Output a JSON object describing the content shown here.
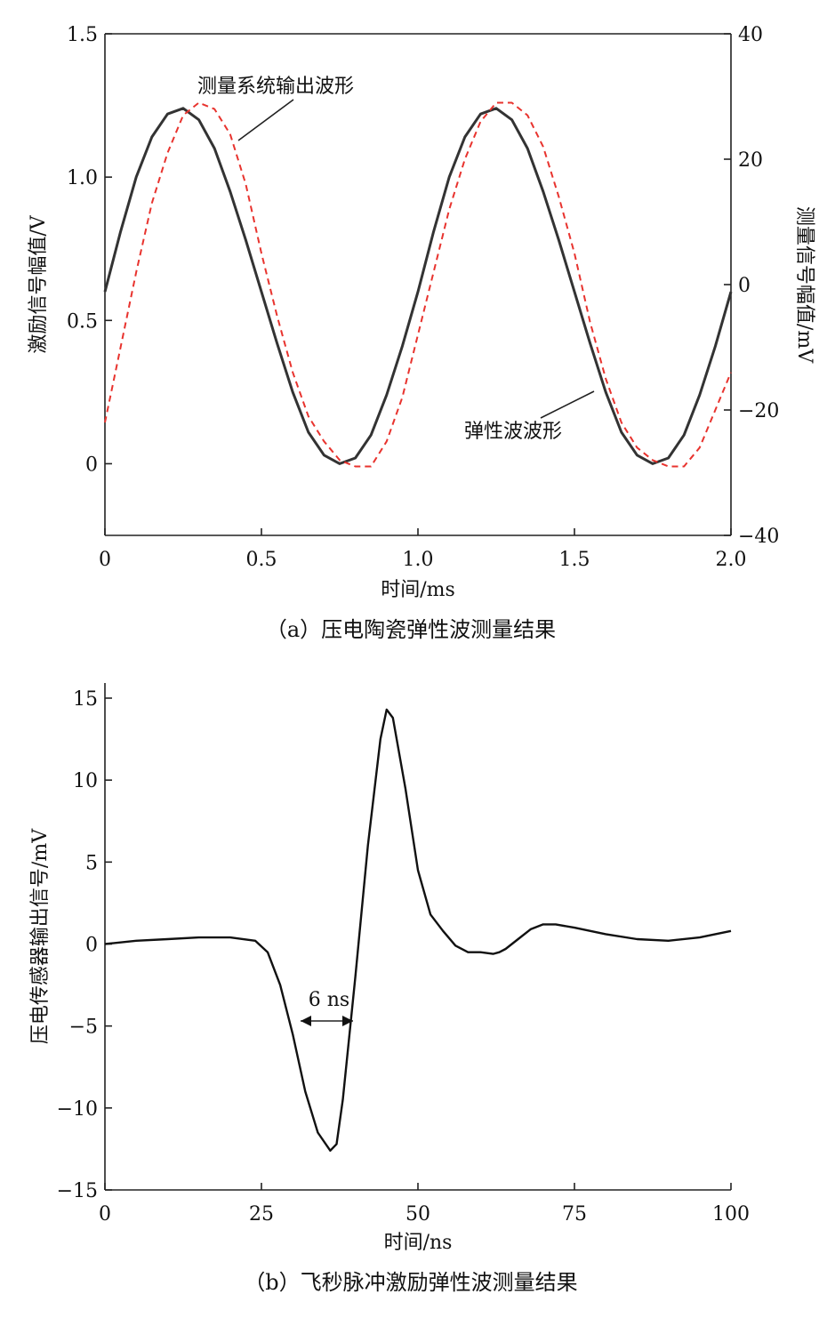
{
  "chart_data": [
    {
      "type": "line",
      "caption": "（a）压电陶瓷弹性波测量结果",
      "xlabel": "时间/ms",
      "ylabel_left": "激励信号幅值/V",
      "ylabel_right": "测量信号幅值/mV",
      "xlim": [
        0,
        2.0
      ],
      "ylim_left": [
        -0.25,
        1.5
      ],
      "ylim_right": [
        -40,
        40
      ],
      "xticks": [
        "0",
        "0.5",
        "1.0",
        "1.5",
        "2.0"
      ],
      "yticks_left": [
        "0",
        "0.5",
        "1.0",
        "1.5"
      ],
      "yticks_right": [
        "−40",
        "−20",
        "0",
        "20",
        "40"
      ],
      "grid": false,
      "series": [
        {
          "name": "弹性波波形",
          "axis": "left",
          "color": "#333333",
          "style": "solid",
          "x": [
            0,
            0.05,
            0.1,
            0.15,
            0.2,
            0.25,
            0.3,
            0.35,
            0.4,
            0.45,
            0.5,
            0.55,
            0.6,
            0.65,
            0.7,
            0.75,
            0.8,
            0.85,
            0.9,
            0.95,
            1.0,
            1.05,
            1.1,
            1.15,
            1.2,
            1.25,
            1.3,
            1.35,
            1.4,
            1.45,
            1.5,
            1.55,
            1.6,
            1.65,
            1.7,
            1.75,
            1.8,
            1.85,
            1.9,
            1.95,
            2.0
          ],
          "y": [
            0.6,
            0.81,
            1.0,
            1.14,
            1.22,
            1.24,
            1.2,
            1.1,
            0.95,
            0.78,
            0.6,
            0.42,
            0.25,
            0.11,
            0.03,
            0.0,
            0.02,
            0.1,
            0.24,
            0.41,
            0.6,
            0.81,
            1.0,
            1.14,
            1.22,
            1.24,
            1.2,
            1.1,
            0.95,
            0.78,
            0.6,
            0.42,
            0.25,
            0.11,
            0.03,
            0.0,
            0.02,
            0.1,
            0.24,
            0.41,
            0.6
          ]
        },
        {
          "name": "测量系统输出波形",
          "axis": "right",
          "color": "#e8332e",
          "style": "dashed",
          "x": [
            0,
            0.05,
            0.1,
            0.15,
            0.2,
            0.25,
            0.3,
            0.35,
            0.4,
            0.45,
            0.5,
            0.55,
            0.6,
            0.65,
            0.7,
            0.75,
            0.8,
            0.85,
            0.9,
            0.95,
            1.0,
            1.05,
            1.1,
            1.15,
            1.2,
            1.25,
            1.3,
            1.35,
            1.4,
            1.45,
            1.5,
            1.55,
            1.6,
            1.65,
            1.7,
            1.75,
            1.8,
            1.85,
            1.9,
            1.95,
            2.0
          ],
          "y": [
            -22,
            -10,
            2,
            13,
            21,
            27,
            29,
            28,
            24,
            16,
            5,
            -5,
            -14,
            -21,
            -25,
            -28,
            -29,
            -29,
            -25,
            -18,
            -8,
            2,
            12,
            20,
            26,
            29,
            29,
            27,
            22,
            14,
            5,
            -6,
            -15,
            -22,
            -26,
            -28,
            -29,
            -29,
            -26,
            -20,
            -14
          ]
        }
      ],
      "annotations": [
        "测量系统输出波形",
        "弹性波波形"
      ]
    },
    {
      "type": "line",
      "caption": "（b）飞秒脉冲激励弹性波测量结果",
      "xlabel": "时间/ns",
      "ylabel": "压电传感器输出信号/mV",
      "xlim": [
        0,
        100
      ],
      "ylim": [
        -15,
        15
      ],
      "xticks": [
        "0",
        "25",
        "50",
        "75",
        "100"
      ],
      "yticks": [
        "−15",
        "−10",
        "−5",
        "0",
        "5",
        "10",
        "15"
      ],
      "grid": false,
      "series": [
        {
          "color": "#111111",
          "style": "solid",
          "x": [
            0,
            5,
            10,
            15,
            20,
            24,
            26,
            28,
            30,
            32,
            34,
            36,
            37,
            38,
            40,
            42,
            44,
            45,
            46,
            48,
            50,
            52,
            54,
            56,
            58,
            60,
            62,
            63,
            64,
            66,
            68,
            70,
            72,
            75,
            80,
            85,
            90,
            95,
            100
          ],
          "y": [
            0,
            0.2,
            0.3,
            0.4,
            0.4,
            0.2,
            -0.5,
            -2.5,
            -5.5,
            -9,
            -11.5,
            -12.6,
            -12.2,
            -9.5,
            -2,
            6,
            12.5,
            14.3,
            13.8,
            9.5,
            4.5,
            1.8,
            0.8,
            -0.1,
            -0.5,
            -0.5,
            -0.6,
            -0.5,
            -0.3,
            0.3,
            0.9,
            1.2,
            1.2,
            1.0,
            0.6,
            0.3,
            0.2,
            0.4,
            0.8
          ]
        }
      ],
      "annotations": [
        "6 ns"
      ]
    }
  ]
}
